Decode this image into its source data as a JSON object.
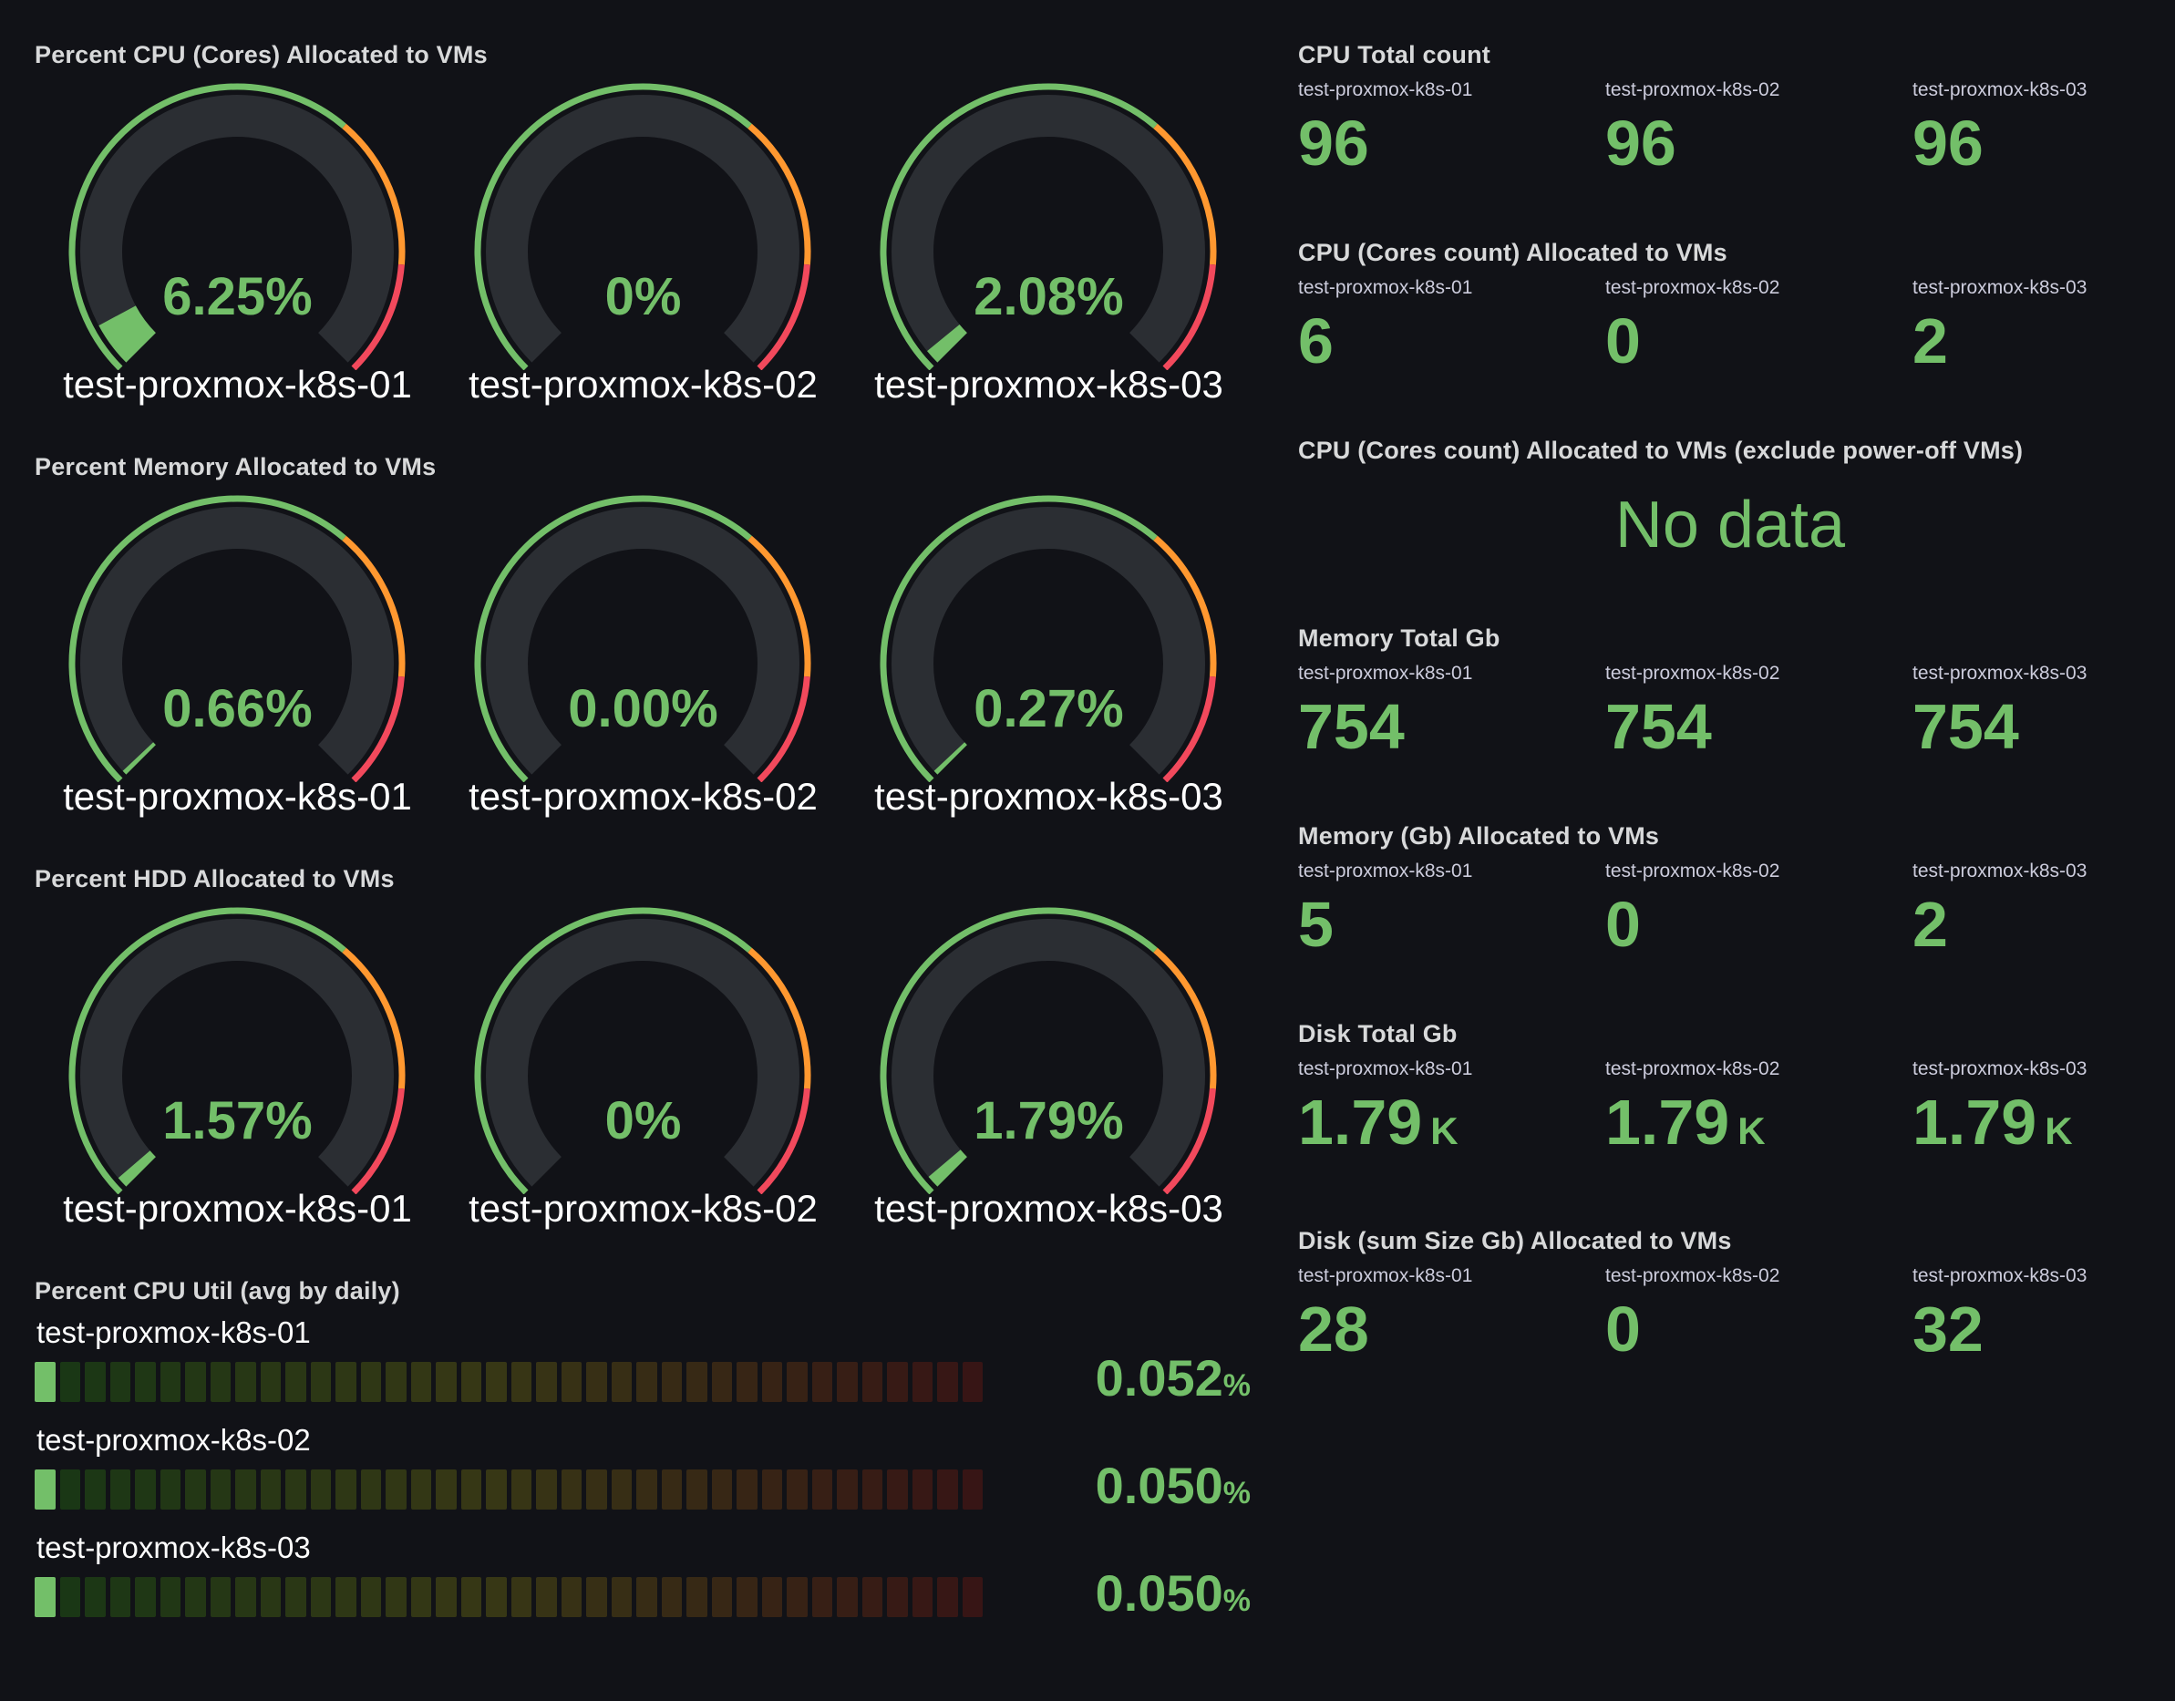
{
  "colors": {
    "background": "#111217",
    "green": "#73bf69",
    "orange": "#ff9830",
    "red": "#f2495c",
    "gauge_track": "#2b2e33",
    "title_text": "#d8d9da",
    "label_text": "#ccccdc",
    "host_text": "#ffffff"
  },
  "hosts": [
    "test-proxmox-k8s-01",
    "test-proxmox-k8s-02",
    "test-proxmox-k8s-03"
  ],
  "chart_data": [
    {
      "type": "gauge",
      "title": "Percent CPU (Cores) Allocated to VMs",
      "categories": [
        "test-proxmox-k8s-01",
        "test-proxmox-k8s-02",
        "test-proxmox-k8s-03"
      ],
      "values": [
        6.25,
        0,
        2.08
      ],
      "display_values": [
        "6.25%",
        "0%",
        "2.08%"
      ],
      "min": 0,
      "max": 100,
      "thresholds": [
        {
          "from": 0,
          "color": "#73bf69"
        },
        {
          "from": 65,
          "color": "#ff9830"
        },
        {
          "from": 85,
          "color": "#f2495c"
        }
      ]
    },
    {
      "type": "gauge",
      "title": "Percent Memory Allocated to VMs",
      "categories": [
        "test-proxmox-k8s-01",
        "test-proxmox-k8s-02",
        "test-proxmox-k8s-03"
      ],
      "values": [
        0.66,
        0,
        0.27
      ],
      "display_values": [
        "0.66%",
        "0.00%",
        "0.27%"
      ],
      "min": 0,
      "max": 100,
      "thresholds": [
        {
          "from": 0,
          "color": "#73bf69"
        },
        {
          "from": 65,
          "color": "#ff9830"
        },
        {
          "from": 85,
          "color": "#f2495c"
        }
      ]
    },
    {
      "type": "gauge",
      "title": "Percent HDD Allocated to VMs",
      "categories": [
        "test-proxmox-k8s-01",
        "test-proxmox-k8s-02",
        "test-proxmox-k8s-03"
      ],
      "values": [
        1.57,
        0,
        1.79
      ],
      "display_values": [
        "1.57%",
        "0%",
        "1.79%"
      ],
      "min": 0,
      "max": 100,
      "thresholds": [
        {
          "from": 0,
          "color": "#73bf69"
        },
        {
          "from": 65,
          "color": "#ff9830"
        },
        {
          "from": 85,
          "color": "#f2495c"
        }
      ]
    },
    {
      "type": "bar",
      "title": "Percent CPU Util (avg by daily)",
      "categories": [
        "test-proxmox-k8s-01",
        "test-proxmox-k8s-02",
        "test-proxmox-k8s-03"
      ],
      "values": [
        0.052,
        0.05,
        0.05
      ],
      "display_values": [
        "0.052",
        "0.050",
        "0.050"
      ],
      "unit": "%",
      "min": 0,
      "max": 100,
      "segments": 38
    },
    {
      "type": "stat",
      "title": "CPU Total count",
      "categories": [
        "test-proxmox-k8s-01",
        "test-proxmox-k8s-02",
        "test-proxmox-k8s-03"
      ],
      "values": [
        96,
        96,
        96
      ],
      "display_values": [
        "96",
        "96",
        "96"
      ]
    },
    {
      "type": "stat",
      "title": "CPU (Cores count) Allocated to VMs",
      "categories": [
        "test-proxmox-k8s-01",
        "test-proxmox-k8s-02",
        "test-proxmox-k8s-03"
      ],
      "values": [
        6,
        0,
        2
      ],
      "display_values": [
        "6",
        "0",
        "2"
      ]
    },
    {
      "type": "stat",
      "title": "CPU (Cores count) Allocated to VMs (exclude power-off VMs)",
      "no_data_text": "No data"
    },
    {
      "type": "stat",
      "title": "Memory Total Gb",
      "categories": [
        "test-proxmox-k8s-01",
        "test-proxmox-k8s-02",
        "test-proxmox-k8s-03"
      ],
      "values": [
        754,
        754,
        754
      ],
      "display_values": [
        "754",
        "754",
        "754"
      ]
    },
    {
      "type": "stat",
      "title": "Memory (Gb) Allocated to VMs",
      "categories": [
        "test-proxmox-k8s-01",
        "test-proxmox-k8s-02",
        "test-proxmox-k8s-03"
      ],
      "values": [
        5,
        0,
        2
      ],
      "display_values": [
        "5",
        "0",
        "2"
      ]
    },
    {
      "type": "stat",
      "title": "Disk Total Gb",
      "categories": [
        "test-proxmox-k8s-01",
        "test-proxmox-k8s-02",
        "test-proxmox-k8s-03"
      ],
      "values": [
        1790,
        1790,
        1790
      ],
      "display_values": [
        "1.79",
        "1.79",
        "1.79"
      ],
      "suffix": "K"
    },
    {
      "type": "stat",
      "title": "Disk (sum Size Gb) Allocated to VMs",
      "categories": [
        "test-proxmox-k8s-01",
        "test-proxmox-k8s-02",
        "test-proxmox-k8s-03"
      ],
      "values": [
        28,
        0,
        32
      ],
      "display_values": [
        "28",
        "0",
        "32"
      ]
    }
  ]
}
